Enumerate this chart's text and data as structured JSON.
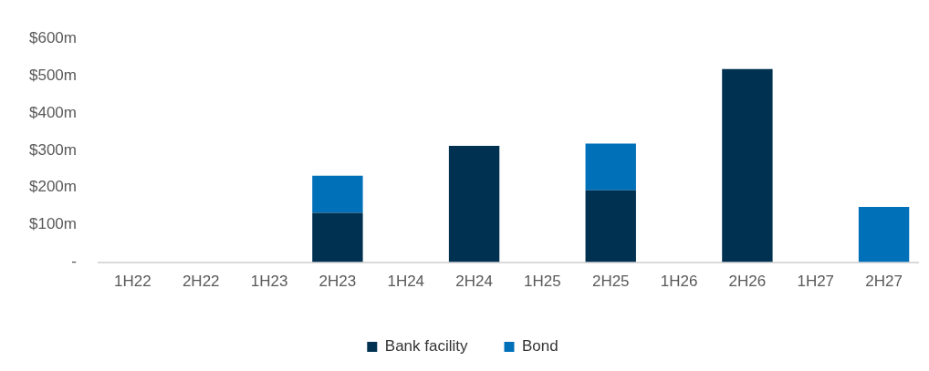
{
  "chart_data": {
    "type": "bar",
    "stacked": true,
    "categories": [
      "1H22",
      "2H22",
      "1H23",
      "2H23",
      "1H24",
      "2H24",
      "1H25",
      "2H25",
      "1H26",
      "2H26",
      "1H27",
      "2H27"
    ],
    "series": [
      {
        "name": "Bank facility",
        "color": "#003150",
        "values": [
          0,
          0,
          0,
          132,
          0,
          312,
          0,
          193,
          0,
          518,
          0,
          0
        ]
      },
      {
        "name": "Bond",
        "color": "#0070b8",
        "values": [
          0,
          0,
          0,
          100,
          0,
          0,
          0,
          125,
          0,
          0,
          0,
          148
        ]
      }
    ],
    "ylim": [
      0,
      600
    ],
    "yticks": [
      {
        "value": 0,
        "label": "-"
      },
      {
        "value": 100,
        "label": "$100m"
      },
      {
        "value": 200,
        "label": "$200m"
      },
      {
        "value": 300,
        "label": "$300m"
      },
      {
        "value": 400,
        "label": "$400m"
      },
      {
        "value": 500,
        "label": "$500m"
      },
      {
        "value": 600,
        "label": "$600m"
      }
    ],
    "grid": false,
    "legend": "bottom"
  }
}
